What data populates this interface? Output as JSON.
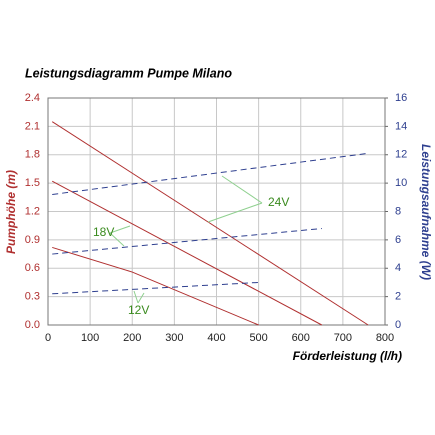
{
  "chart_data": {
    "type": "line",
    "title": "Leistungsdiagramm Pumpe Milano",
    "xlabel": "Förderleistung (l/h)",
    "ylabel": "Pumphöhe (m)",
    "y2label": "Leistungsaufnahme (W)",
    "xlim": [
      0,
      800
    ],
    "xticks": [
      0,
      100,
      200,
      300,
      400,
      500,
      600,
      700,
      800
    ],
    "ylim": [
      0,
      2.4
    ],
    "yticks": [
      {
        "value": 0,
        "label": "0.0"
      },
      0.3,
      0.6,
      0.9,
      1.2,
      1.5,
      1.8,
      2.1,
      2.4
    ],
    "y2lim": [
      0,
      16
    ],
    "y2ticks": [
      0,
      2,
      4,
      6,
      8,
      10,
      12,
      14,
      16
    ],
    "ycolor": "#b03030",
    "y2color": "#2e3f8f",
    "grid": true,
    "series": [
      {
        "color": "#b03030",
        "x": [
          10,
          760
        ],
        "values": [
          2.15,
          0
        ]
      },
      {
        "color": "#b03030",
        "x": [
          10,
          650
        ],
        "values": [
          1.52,
          0
        ]
      },
      {
        "color": "#b03030",
        "x": [
          10,
          200,
          500
        ],
        "values": [
          0.82,
          0.56,
          0
        ]
      },
      {
        "color": "#2e3f8f",
        "axis": "y2",
        "dashed": true,
        "x": [
          10,
          760
        ],
        "values": [
          9.2,
          12.1
        ]
      },
      {
        "color": "#2e3f8f",
        "axis": "y2",
        "dashed": true,
        "x": [
          10,
          650
        ],
        "values": [
          5.0,
          6.8
        ]
      },
      {
        "color": "#2e3f8f",
        "axis": "y2",
        "dashed": true,
        "x": [
          10,
          500
        ],
        "values": [
          2.2,
          3.0
        ]
      }
    ],
    "annotation_color": "#3a8a1e",
    "annotations": [
      "24V",
      "18V",
      "12V"
    ]
  }
}
